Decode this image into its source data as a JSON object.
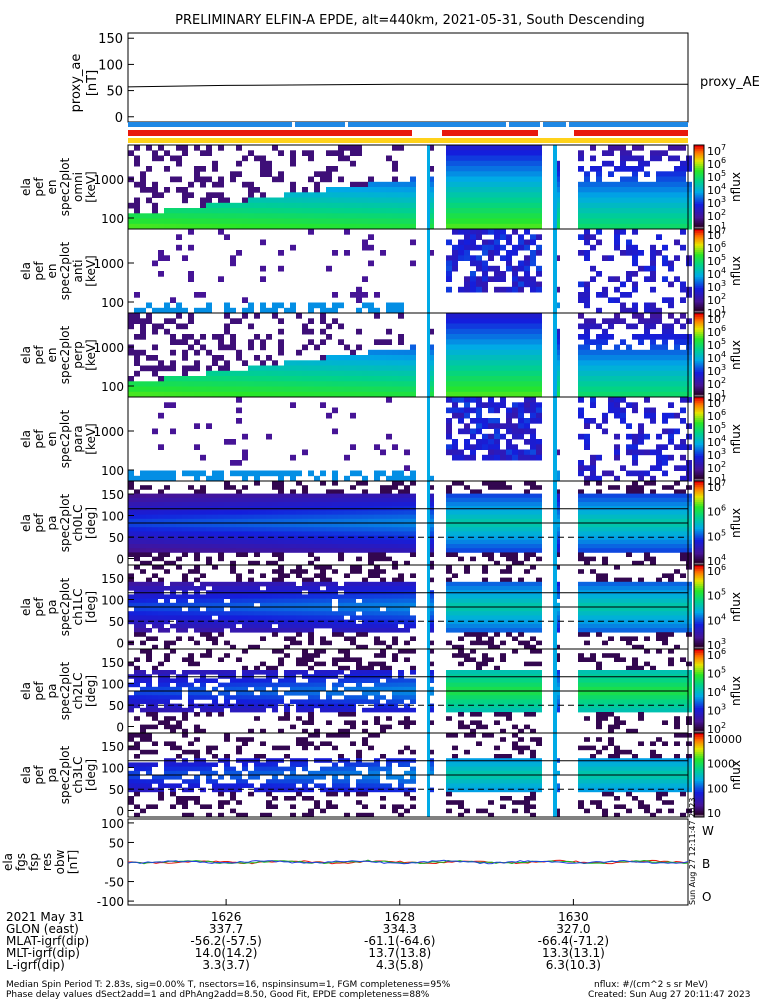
{
  "title": "PRELIMINARY ELFIN-A EPDE, alt=440km, 2021-05-31, South Descending",
  "colors": {
    "accent_red": "#e8180c",
    "accent_blue": "#1e88e5",
    "accent_yellow": "#ffd21a"
  },
  "proxy_panel": {
    "ylabel_line1": "proxy_ae",
    "ylabel_line2": "[nT]",
    "right_label": "proxy_AE",
    "ticks": [
      "150",
      "100",
      "50",
      "0"
    ],
    "ylim": [
      -10,
      160
    ]
  },
  "status_bars": {
    "top": "blue",
    "middle": "red",
    "bottom": "yellow"
  },
  "panels": [
    {
      "ylabel": [
        "ela",
        "pef",
        "en",
        "spec2plot",
        "omni",
        "[keV]"
      ],
      "ticks": [
        "1000",
        "100"
      ],
      "cbar": "log7",
      "cbar_label": "nflux",
      "kind": "energy",
      "density": 1.0
    },
    {
      "ylabel": [
        "ela",
        "pef",
        "en",
        "spec2plot",
        "anti",
        "[keV]"
      ],
      "ticks": [
        "1000",
        "100"
      ],
      "cbar": "log7",
      "cbar_label": "nflux",
      "kind": "energy",
      "density": 0.25
    },
    {
      "ylabel": [
        "ela",
        "pef",
        "en",
        "spec2plot",
        "perp",
        "[keV]"
      ],
      "ticks": [
        "1000",
        "100"
      ],
      "cbar": "log7",
      "cbar_label": "nflux",
      "kind": "energy",
      "density": 1.0
    },
    {
      "ylabel": [
        "ela",
        "pef",
        "en",
        "spec2plot",
        "para",
        "[keV]"
      ],
      "ticks": [
        "1000",
        "100"
      ],
      "cbar": "log7",
      "cbar_label": "nflux",
      "kind": "energy",
      "density": 0.25
    },
    {
      "ylabel": [
        "ela",
        "pef",
        "pa",
        "spec2plot",
        "ch0LC",
        "[deg]"
      ],
      "ticks": [
        "150",
        "100",
        "50",
        "0"
      ],
      "cbar": "ch0",
      "cbar_label": "nflux",
      "kind": "pa",
      "density": 1.0
    },
    {
      "ylabel": [
        "ela",
        "pef",
        "pa",
        "spec2plot",
        "ch1LC",
        "[deg]"
      ],
      "ticks": [
        "150",
        "100",
        "50",
        "0"
      ],
      "cbar": "ch1",
      "cbar_label": "nflux",
      "kind": "pa",
      "density": 0.9
    },
    {
      "ylabel": [
        "ela",
        "pef",
        "pa",
        "spec2plot",
        "ch2LC",
        "[deg]"
      ],
      "ticks": [
        "150",
        "100",
        "50",
        "0"
      ],
      "cbar": "ch2",
      "cbar_label": "nflux",
      "kind": "pa",
      "density": 0.8
    },
    {
      "ylabel": [
        "ela",
        "pef",
        "pa",
        "spec2plot",
        "ch3LC",
        "[deg]"
      ],
      "ticks": [
        "150",
        "100",
        "50",
        "0"
      ],
      "cbar": "ch3",
      "cbar_label": "nflux",
      "kind": "pa",
      "density": 0.7
    }
  ],
  "colorbar_labels": {
    "log7": [
      "10",
      "10",
      "10",
      "10",
      "10",
      "10",
      "10"
    ],
    "log7_exp": [
      "7",
      "6",
      "5",
      "4",
      "3",
      "2",
      "1"
    ],
    "ch0": [
      "10",
      "10",
      "10",
      "10"
    ],
    "ch0_exp": [
      "7",
      "6",
      "5",
      "4"
    ],
    "ch1": [
      "10",
      "10",
      "10",
      "10"
    ],
    "ch1_exp": [
      "6",
      "5",
      "4",
      "3"
    ],
    "ch2": [
      "10",
      "10",
      "10",
      "10",
      "10"
    ],
    "ch2_exp": [
      "6",
      "5",
      "4",
      "3",
      "2"
    ],
    "ch3": [
      "10000",
      "1000",
      "100",
      "10"
    ]
  },
  "field_panel": {
    "ylabel": [
      "ela",
      "fgs",
      "fsp",
      "res",
      "obw",
      "[nT]"
    ],
    "ticks": [
      "100",
      "50",
      "0",
      "-50",
      "-100"
    ],
    "ylim": [
      -110,
      110
    ],
    "legend": [
      {
        "label": "W",
        "color": "#e8180c"
      },
      {
        "label": "B",
        "color": "#1cb41c"
      },
      {
        "label": "O",
        "color": "#1e40e0"
      }
    ],
    "side_text": "Sun Aug 27 12:11:47 2023"
  },
  "chart_data": {
    "type": "heatmap",
    "title": "PRELIMINARY ELFIN-A EPDE, alt=440km, 2021-05-31, South Descending",
    "x_ticks": [
      "1626",
      "1628",
      "1630"
    ],
    "proxy_ae": {
      "x": [
        "1624:52",
        "1626:00",
        "1628:00",
        "1630:00",
        "1631:19"
      ],
      "y": [
        57,
        60,
        62,
        62,
        62
      ]
    },
    "panels": [
      "omni",
      "anti",
      "perp",
      "para",
      "ch0LC",
      "ch1LC",
      "ch2LC",
      "ch3LC"
    ],
    "energy_range_keV": [
      60,
      7000
    ],
    "pa_range_deg": [
      0,
      180
    ],
    "flux_range": [
      10,
      10000000
    ]
  },
  "ephemeris": {
    "labels": [
      "2021 May 31",
      "GLON (east)",
      "MLAT-igrf(dip)",
      "MLT-igrf(dip)",
      "L-igrf(dip)"
    ],
    "cols": [
      [
        "1626",
        "337.7",
        "-56.2(-57.5)",
        "14.0(14.2)",
        "3.3(3.7)"
      ],
      [
        "1628",
        "334.3",
        "-61.1(-64.6)",
        "13.7(13.8)",
        "4.3(5.8)"
      ],
      [
        "1630",
        "327.0",
        "-66.4(-71.2)",
        "13.3(13.1)",
        "6.3(10.3)"
      ]
    ]
  },
  "footer": {
    "left1": "Median Spin Period T: 2.83s, sig=0.00% T, nsectors=16, nspinsinsum=1, FGM completeness=95%",
    "left2": "Phase delay values dSect2add=1 and dPhAng2add=8.50, Good Fit, EPDE completeness=88%",
    "right1": "nflux: #/(cm^2 s sr MeV)",
    "right2": "Created: Sun Aug 27 20:11:47 2023"
  }
}
